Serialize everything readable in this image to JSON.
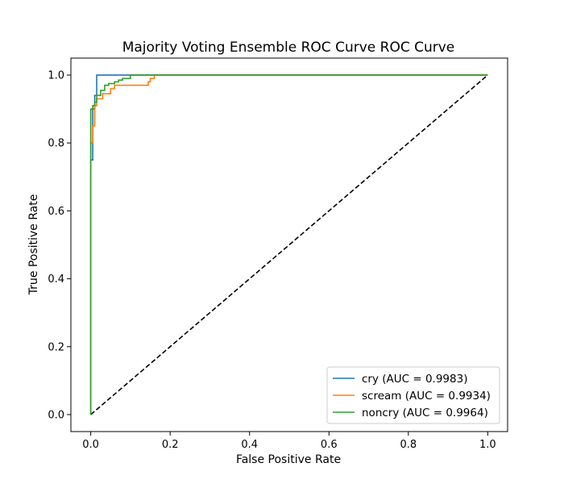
{
  "chart_data": {
    "type": "line",
    "title": "Majority Voting Ensemble ROC Curve ROC Curve",
    "xlabel": "False Positive Rate",
    "ylabel": "True Positive Rate",
    "xlim": [
      -0.05,
      1.05
    ],
    "ylim": [
      -0.05,
      1.05
    ],
    "xticks": [
      "0.0",
      "0.2",
      "0.4",
      "0.6",
      "0.8",
      "1.0"
    ],
    "yticks": [
      "0.0",
      "0.2",
      "0.4",
      "0.6",
      "0.8",
      "1.0"
    ],
    "grid": false,
    "legend_position": "lower-right",
    "series": [
      {
        "name": "cry (AUC = 0.9983)",
        "auc": 0.9983,
        "color": "#1f77b4",
        "x": [
          0.0,
          0.0,
          0.005,
          0.005,
          0.01,
          0.01,
          0.015,
          0.015,
          1.0
        ],
        "y": [
          0.0,
          0.75,
          0.75,
          0.9,
          0.9,
          0.94,
          0.94,
          1.0,
          1.0
        ]
      },
      {
        "name": "scream (AUC = 0.9934)",
        "auc": 0.9934,
        "color": "#ff7f0e",
        "x": [
          0.0,
          0.0,
          0.005,
          0.005,
          0.01,
          0.01,
          0.015,
          0.015,
          0.03,
          0.03,
          0.05,
          0.05,
          0.06,
          0.06,
          0.145,
          0.145,
          0.15,
          0.15,
          0.16,
          0.16,
          1.0
        ],
        "y": [
          0.0,
          0.8,
          0.8,
          0.85,
          0.85,
          0.91,
          0.91,
          0.93,
          0.93,
          0.945,
          0.945,
          0.96,
          0.96,
          0.97,
          0.97,
          0.98,
          0.98,
          0.99,
          0.99,
          1.0,
          1.0
        ]
      },
      {
        "name": "noncry (AUC = 0.9964)",
        "auc": 0.9964,
        "color": "#2ca02c",
        "x": [
          0.0,
          0.0,
          0.005,
          0.005,
          0.01,
          0.01,
          0.015,
          0.015,
          0.025,
          0.025,
          0.035,
          0.035,
          0.045,
          0.045,
          0.06,
          0.06,
          0.07,
          0.07,
          0.08,
          0.08,
          0.1,
          0.1,
          1.0
        ],
        "y": [
          0.0,
          0.9,
          0.9,
          0.91,
          0.91,
          0.92,
          0.92,
          0.94,
          0.94,
          0.955,
          0.955,
          0.97,
          0.97,
          0.975,
          0.975,
          0.98,
          0.98,
          0.985,
          0.985,
          0.99,
          0.99,
          1.0,
          1.0
        ]
      }
    ],
    "reference_line": {
      "style": "dashed",
      "color": "#000000",
      "x": [
        0.0,
        1.0
      ],
      "y": [
        0.0,
        1.0
      ]
    }
  }
}
